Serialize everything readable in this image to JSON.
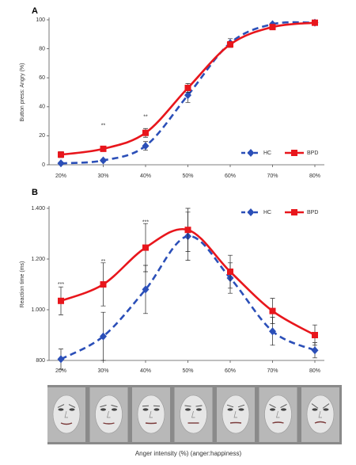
{
  "chart_data": [
    {
      "type": "line",
      "panel": "A",
      "ylabel": "Button press: Angry (%)",
      "categories": [
        "20%",
        "30%",
        "40%",
        "50%",
        "60%",
        "70%",
        "80%"
      ],
      "ylim": [
        0,
        100
      ],
      "yticks": [
        0,
        20,
        40,
        60,
        80,
        100
      ],
      "legend": "lower right",
      "series": [
        {
          "name": "HC",
          "color": "#2b4fb8",
          "linestyle": "dashed",
          "marker": "diamond",
          "values": [
            1,
            3,
            13,
            48,
            84,
            97,
            98
          ],
          "errors": [
            1,
            1,
            3,
            5,
            3,
            1,
            1
          ]
        },
        {
          "name": "BPD",
          "color": "#e8161c",
          "linestyle": "solid",
          "marker": "square",
          "values": [
            7,
            11,
            22,
            53,
            83,
            95,
            98
          ],
          "errors": [
            2,
            1,
            3,
            3,
            2,
            1,
            1
          ]
        }
      ],
      "annotations": [
        {
          "text": "**",
          "x": "30%",
          "y": 27
        },
        {
          "text": "**",
          "x": "40%",
          "y": 33
        }
      ]
    },
    {
      "type": "line",
      "panel": "B",
      "ylabel": "Reaction time (ms)",
      "xlabel": "Anger intensity (%) (anger:happiness)",
      "categories": [
        "20%",
        "30%",
        "40%",
        "50%",
        "60%",
        "70%",
        "80%"
      ],
      "ylim": [
        800,
        1400
      ],
      "yticks": [
        800,
        {
          "value": 1000,
          "label": "1.000"
        },
        {
          "value": 1200,
          "label": "1.200"
        },
        {
          "value": 1400,
          "label": "1.400"
        }
      ],
      "legend": "upper right",
      "series": [
        {
          "name": "HC",
          "color": "#2b4fb8",
          "linestyle": "dashed",
          "marker": "diamond",
          "values": [
            805,
            895,
            1080,
            1290,
            1125,
            915,
            840
          ],
          "errors": [
            40,
            95,
            95,
            95,
            60,
            55,
            30
          ]
        },
        {
          "name": "BPD",
          "color": "#e8161c",
          "linestyle": "solid",
          "marker": "square",
          "values": [
            1035,
            1100,
            1245,
            1315,
            1150,
            995,
            900
          ],
          "errors": [
            55,
            85,
            95,
            85,
            65,
            50,
            40
          ]
        }
      ],
      "annotations": [
        {
          "text": "***",
          "x": "20%",
          "y": 1100
        },
        {
          "text": "**",
          "x": "30%",
          "y": 1190
        },
        {
          "text": "***",
          "x": "40%",
          "y": 1345
        }
      ]
    }
  ]
}
